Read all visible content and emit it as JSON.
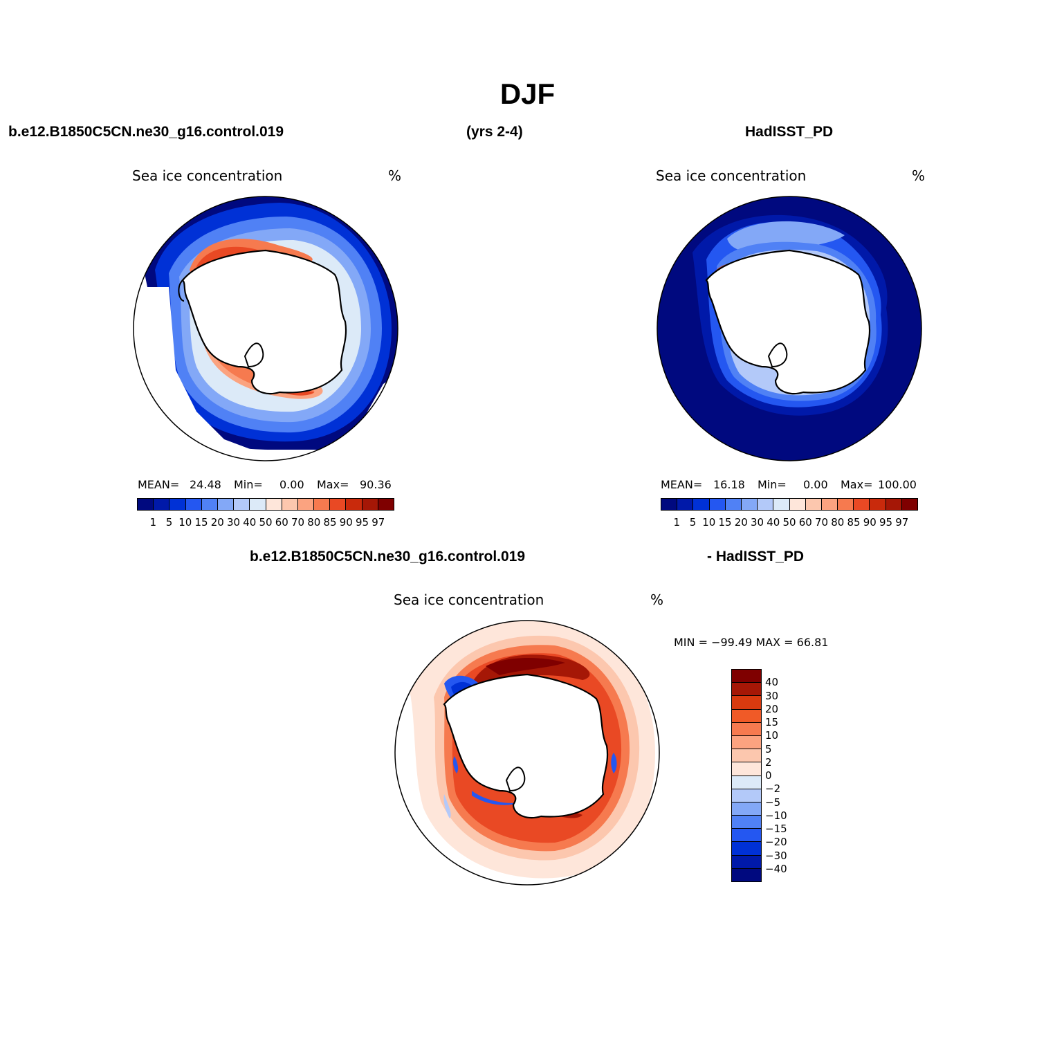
{
  "title": "DJF",
  "headers": {
    "left": "b.e12.B1850C5CN.ne30_g16.control.019",
    "middle": "(yrs 2-4)",
    "right": "HadISST_PD",
    "diff_left": "b.e12.B1850C5CN.ne30_g16.control.019",
    "diff_right": "- HadISST_PD"
  },
  "panels": {
    "model": {
      "label": "Sea ice concentration",
      "unit": "%",
      "mean_label": "MEAN=",
      "mean": "24.48",
      "min_label": "Min=",
      "min": "0.00",
      "max_label": "Max=",
      "max": "90.36"
    },
    "obs": {
      "label": "Sea ice concentration",
      "unit": "%",
      "mean_label": "MEAN=",
      "mean": "16.18",
      "min_label": "Min=",
      "min": "0.00",
      "max_label": "Max=",
      "max": "100.00"
    },
    "diff": {
      "label": "Sea ice concentration",
      "unit": "%",
      "range_text": "MIN = −99.49 MAX =   66.81"
    }
  },
  "colorbars": {
    "conc_colors": [
      "#00097f",
      "#0019a9",
      "#0031d6",
      "#2457f1",
      "#5081f5",
      "#83a8f7",
      "#b3c9f9",
      "#dceaf8",
      "#fee6da",
      "#fcc7ae",
      "#fba380",
      "#f67a4f",
      "#e94924",
      "#c92a0c",
      "#a51706",
      "#7f0000"
    ],
    "conc_ticks": [
      "1",
      "5",
      "10",
      "15",
      "20",
      "30",
      "40",
      "50",
      "60",
      "70",
      "80",
      "85",
      "90",
      "95",
      "97"
    ],
    "diff_colors": [
      "#7f0000",
      "#a51706",
      "#d93a0f",
      "#f05a27",
      "#f67a4f",
      "#fba380",
      "#fcc7ae",
      "#fee6da",
      "#dceaf8",
      "#b3c9f9",
      "#83a8f7",
      "#5081f5",
      "#2457f1",
      "#0031d6",
      "#0019a9",
      "#00097f"
    ],
    "diff_ticks": [
      "40",
      "30",
      "20",
      "15",
      "10",
      "5",
      "2",
      "0",
      "−2",
      "−5",
      "−10",
      "−15",
      "−20",
      "−30",
      "−40"
    ]
  }
}
